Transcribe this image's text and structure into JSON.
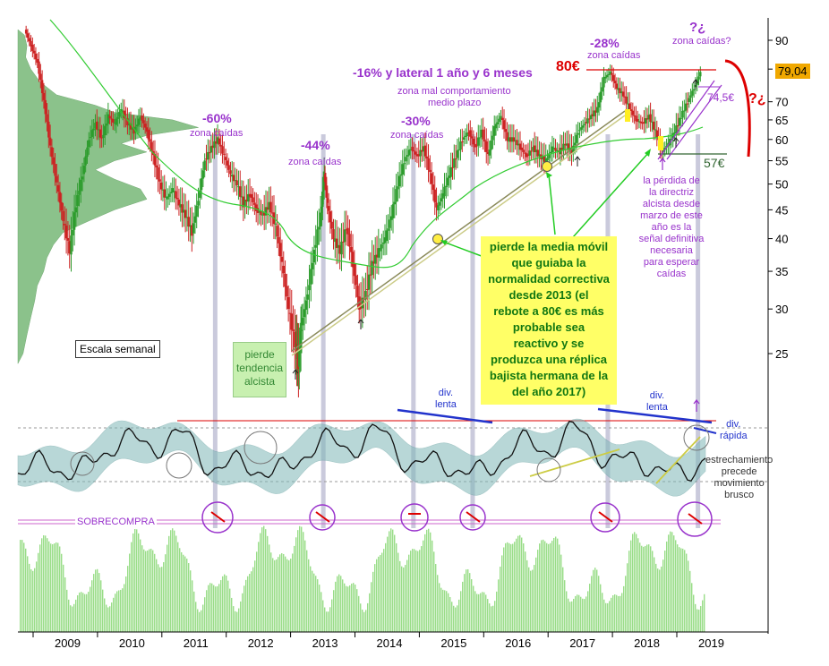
{
  "chart_data": {
    "type": "line",
    "scale": "log",
    "x": [
      "2009",
      "2010",
      "2011",
      "2012",
      "2013",
      "2014",
      "2015",
      "2016",
      "2017",
      "2018",
      "2019"
    ],
    "ylim": [
      22,
      95
    ],
    "y_ticks": [
      "90",
      "80",
      "70",
      "65",
      "60",
      "55",
      "50",
      "45",
      "40",
      "35",
      "30",
      "25"
    ],
    "last_price_label": "79,04",
    "series": [
      {
        "values": [
          [
            2008.35,
            94
          ],
          [
            2008.45,
            88
          ],
          [
            2008.55,
            82
          ],
          [
            2008.65,
            70
          ],
          [
            2008.75,
            58
          ],
          [
            2008.85,
            50
          ],
          [
            2008.95,
            43
          ],
          [
            2009.05,
            38
          ],
          [
            2009.15,
            46
          ],
          [
            2009.25,
            52
          ],
          [
            2009.35,
            60
          ],
          [
            2009.45,
            64
          ],
          [
            2009.55,
            60
          ],
          [
            2009.65,
            66
          ],
          [
            2009.75,
            64
          ],
          [
            2009.85,
            68
          ],
          [
            2009.95,
            64
          ],
          [
            2010.05,
            62
          ],
          [
            2010.15,
            66
          ],
          [
            2010.25,
            62
          ],
          [
            2010.35,
            56
          ],
          [
            2010.45,
            50
          ],
          [
            2010.55,
            47
          ],
          [
            2010.65,
            49
          ],
          [
            2010.75,
            46
          ],
          [
            2010.85,
            44
          ],
          [
            2010.95,
            41
          ],
          [
            2011.05,
            47
          ],
          [
            2011.15,
            55
          ],
          [
            2011.25,
            58
          ],
          [
            2011.35,
            60
          ],
          [
            2011.45,
            56
          ],
          [
            2011.55,
            52
          ],
          [
            2011.65,
            50
          ],
          [
            2011.75,
            46
          ],
          [
            2011.85,
            48
          ],
          [
            2011.95,
            45
          ],
          [
            2012.05,
            44
          ],
          [
            2012.15,
            46
          ],
          [
            2012.25,
            42
          ],
          [
            2012.35,
            36
          ],
          [
            2012.45,
            30
          ],
          [
            2012.55,
            26
          ],
          [
            2012.6,
            24
          ],
          [
            2012.65,
            28
          ],
          [
            2012.75,
            32
          ],
          [
            2012.85,
            38
          ],
          [
            2012.95,
            44
          ],
          [
            2013.0,
            52
          ],
          [
            2013.05,
            46
          ],
          [
            2013.15,
            40
          ],
          [
            2013.25,
            38
          ],
          [
            2013.35,
            42
          ],
          [
            2013.45,
            36
          ],
          [
            2013.55,
            30
          ],
          [
            2013.65,
            32
          ],
          [
            2013.75,
            36
          ],
          [
            2013.85,
            38
          ],
          [
            2013.95,
            40
          ],
          [
            2014.05,
            44
          ],
          [
            2014.15,
            50
          ],
          [
            2014.25,
            55
          ],
          [
            2014.35,
            58
          ],
          [
            2014.45,
            56
          ],
          [
            2014.55,
            58
          ],
          [
            2014.65,
            52
          ],
          [
            2014.75,
            45
          ],
          [
            2014.85,
            48
          ],
          [
            2014.95,
            52
          ],
          [
            2015.05,
            56
          ],
          [
            2015.15,
            60
          ],
          [
            2015.25,
            62
          ],
          [
            2015.35,
            58
          ],
          [
            2015.45,
            62
          ],
          [
            2015.55,
            56
          ],
          [
            2015.65,
            63
          ],
          [
            2015.75,
            66
          ],
          [
            2015.85,
            60
          ],
          [
            2015.95,
            60
          ],
          [
            2016.05,
            58
          ],
          [
            2016.15,
            56
          ],
          [
            2016.25,
            58
          ],
          [
            2016.35,
            56
          ],
          [
            2016.45,
            55
          ],
          [
            2016.55,
            58
          ],
          [
            2016.65,
            57
          ],
          [
            2016.75,
            59
          ],
          [
            2016.85,
            57
          ],
          [
            2016.95,
            62
          ],
          [
            2017.05,
            64
          ],
          [
            2017.15,
            66
          ],
          [
            2017.25,
            68
          ],
          [
            2017.35,
            77
          ],
          [
            2017.45,
            79
          ],
          [
            2017.55,
            74
          ],
          [
            2017.65,
            72
          ],
          [
            2017.75,
            68
          ],
          [
            2017.85,
            65
          ],
          [
            2017.95,
            64
          ],
          [
            2018.05,
            66
          ],
          [
            2018.15,
            62
          ],
          [
            2018.25,
            57
          ],
          [
            2018.35,
            59
          ],
          [
            2018.45,
            62
          ],
          [
            2018.55,
            66
          ],
          [
            2018.65,
            70
          ],
          [
            2018.75,
            74
          ],
          [
            2018.85,
            79
          ]
        ]
      }
    ],
    "annotations": {
      "drops": [
        {
          "pct": "-60%",
          "note": "zona caídas"
        },
        {
          "pct": "-44%",
          "note": "zona caídas"
        },
        {
          "pct": "-30%",
          "note": "zona caídas"
        },
        {
          "pct": "-28%",
          "note": "zona caídas"
        }
      ],
      "lateral_title": "-16% y lateral 1 año y 6 meses",
      "lateral_sub1": "zona mal comportamiento",
      "lateral_sub2": "medio plazo",
      "future_q": "?¿",
      "future_note": "zona caídas?",
      "q_right": "?¿",
      "level_80": "80€",
      "level_745": "74,5€",
      "level_57": "57€",
      "trend_loss": [
        "pierde",
        "tendencia",
        "alcista"
      ],
      "ma_loss": [
        "pierde la media móvil",
        "que guiaba la",
        "normalidad correctiva",
        "desde 2013 (el",
        "rebote a 80€ es más",
        "probable sea",
        "reactivo y se",
        "produzca una réplica",
        "bajista hermana de la",
        "del año 2017)"
      ],
      "directriz": [
        "la pérdida de",
        "la directriz",
        "alcista  desde",
        "marzo de este",
        "año es la",
        "señal definitiva",
        "necesaria",
        "para esperar",
        "caídas"
      ],
      "weekly_scale": "Escala semanal",
      "div_slow_1": [
        "div.",
        "lenta"
      ],
      "div_slow_2": [
        "div.",
        "lenta"
      ],
      "div_fast": [
        "div.",
        "rápida"
      ],
      "narrowing": [
        "estrechamiento",
        "precede",
        "movimiento",
        "brusco"
      ],
      "overbought": "SOBRECOMPRA"
    }
  },
  "colors": {
    "up_candle": "#2d9c2d",
    "down_candle": "#cc2222",
    "ma": "#33cc33",
    "overlay_purple": "#9933cc",
    "resistance_red": "#dd0000",
    "volume_green": "#99dd88",
    "oscillator_band": "#7fb7b7",
    "profile_green": "#66aa66"
  }
}
